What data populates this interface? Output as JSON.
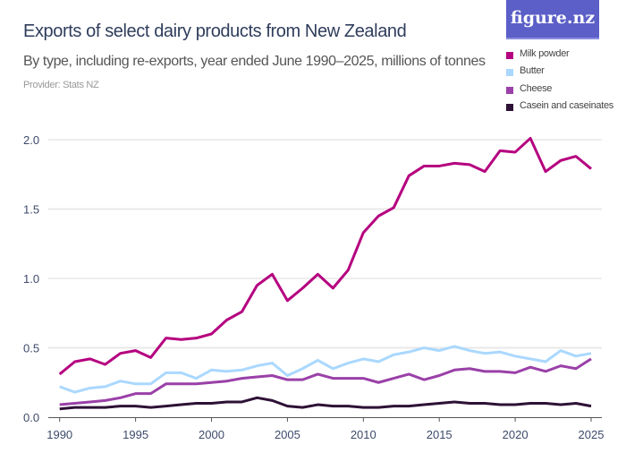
{
  "header": {
    "title": "Exports of select dairy products from New Zealand",
    "subtitle": "By type, including re-exports, year ended June 1990–2025, millions of tonnes",
    "provider": "Provider: Stats NZ",
    "logo": "figure.nz"
  },
  "chart_data": {
    "type": "line",
    "title": "Exports of select dairy products from New Zealand",
    "subtitle": "By type, including re-exports, year ended June 1990–2025, millions of tonnes",
    "xlabel": "",
    "ylabel": "",
    "xlim": [
      1990,
      2025
    ],
    "ylim": [
      0,
      2.0
    ],
    "grid": true,
    "legend_position": "top-right",
    "x_ticks": [
      "1990",
      "1995",
      "2000",
      "2005",
      "2010",
      "2015",
      "2020",
      "2025"
    ],
    "y_ticks": [
      "0.0",
      "0.5",
      "1.0",
      "1.5",
      "2.0"
    ],
    "x": [
      1990,
      1991,
      1992,
      1993,
      1994,
      1995,
      1996,
      1997,
      1998,
      1999,
      2000,
      2001,
      2002,
      2003,
      2004,
      2005,
      2006,
      2007,
      2008,
      2009,
      2010,
      2011,
      2012,
      2013,
      2014,
      2015,
      2016,
      2017,
      2018,
      2019,
      2020,
      2021,
      2022,
      2023,
      2024,
      2025
    ],
    "series": [
      {
        "name": "Milk powder",
        "color": "#b5007f",
        "values": [
          0.31,
          0.4,
          0.42,
          0.38,
          0.46,
          0.48,
          0.43,
          0.57,
          0.56,
          0.57,
          0.6,
          0.7,
          0.76,
          0.95,
          1.03,
          0.84,
          0.93,
          1.03,
          0.93,
          1.06,
          1.33,
          1.45,
          1.51,
          1.74,
          1.81,
          1.81,
          1.83,
          1.82,
          1.77,
          1.92,
          1.91,
          2.01,
          1.77,
          1.85,
          1.88,
          1.79
        ]
      },
      {
        "name": "Butter",
        "color": "#aad8ff",
        "values": [
          0.22,
          0.18,
          0.21,
          0.22,
          0.26,
          0.24,
          0.24,
          0.32,
          0.32,
          0.28,
          0.34,
          0.33,
          0.34,
          0.37,
          0.39,
          0.3,
          0.35,
          0.41,
          0.35,
          0.39,
          0.42,
          0.4,
          0.45,
          0.47,
          0.5,
          0.48,
          0.51,
          0.48,
          0.46,
          0.47,
          0.44,
          0.42,
          0.4,
          0.48,
          0.44,
          0.46
        ]
      },
      {
        "name": "Cheese",
        "color": "#9a40a8",
        "values": [
          0.09,
          0.1,
          0.11,
          0.12,
          0.14,
          0.17,
          0.17,
          0.24,
          0.24,
          0.24,
          0.25,
          0.26,
          0.28,
          0.29,
          0.3,
          0.27,
          0.27,
          0.31,
          0.28,
          0.28,
          0.28,
          0.25,
          0.28,
          0.31,
          0.27,
          0.3,
          0.34,
          0.35,
          0.33,
          0.33,
          0.32,
          0.36,
          0.33,
          0.37,
          0.35,
          0.42
        ]
      },
      {
        "name": "Casein and caseinates",
        "color": "#2e1136",
        "values": [
          0.06,
          0.07,
          0.07,
          0.07,
          0.08,
          0.08,
          0.07,
          0.08,
          0.09,
          0.1,
          0.1,
          0.11,
          0.11,
          0.14,
          0.12,
          0.08,
          0.07,
          0.09,
          0.08,
          0.08,
          0.07,
          0.07,
          0.08,
          0.08,
          0.09,
          0.1,
          0.11,
          0.1,
          0.1,
          0.09,
          0.09,
          0.1,
          0.1,
          0.09,
          0.1,
          0.08
        ]
      }
    ]
  }
}
